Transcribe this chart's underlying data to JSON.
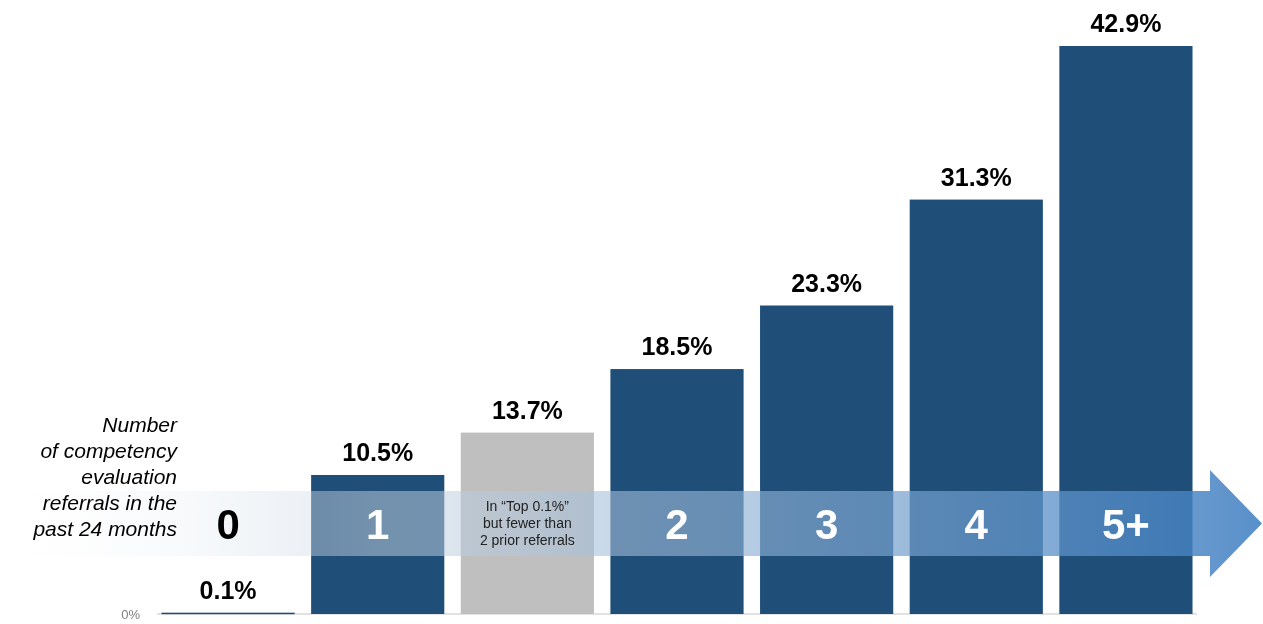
{
  "chart_data": {
    "type": "bar",
    "xlabel": "Number\nof competency\nevaluation\nreferrals in the\npast 24 months",
    "categories": [
      "0",
      "1",
      "In “Top 0.1%”\nbut fewer than\n2 prior referrals",
      "2",
      "3",
      "4",
      "5+"
    ],
    "values": [
      0.1,
      10.5,
      13.7,
      18.5,
      23.3,
      31.3,
      42.9
    ],
    "colors": [
      "#1f4e79",
      "#1f4e79",
      "#bfbfbf",
      "#1f4e79",
      "#1f4e79",
      "#1f4e79",
      "#1f4e79"
    ],
    "value_labels": [
      "0.1%",
      "10.5%",
      "13.7%",
      "18.5%",
      "23.3%",
      "31.3%",
      "42.9%"
    ],
    "annotations": [
      "0%"
    ]
  }
}
